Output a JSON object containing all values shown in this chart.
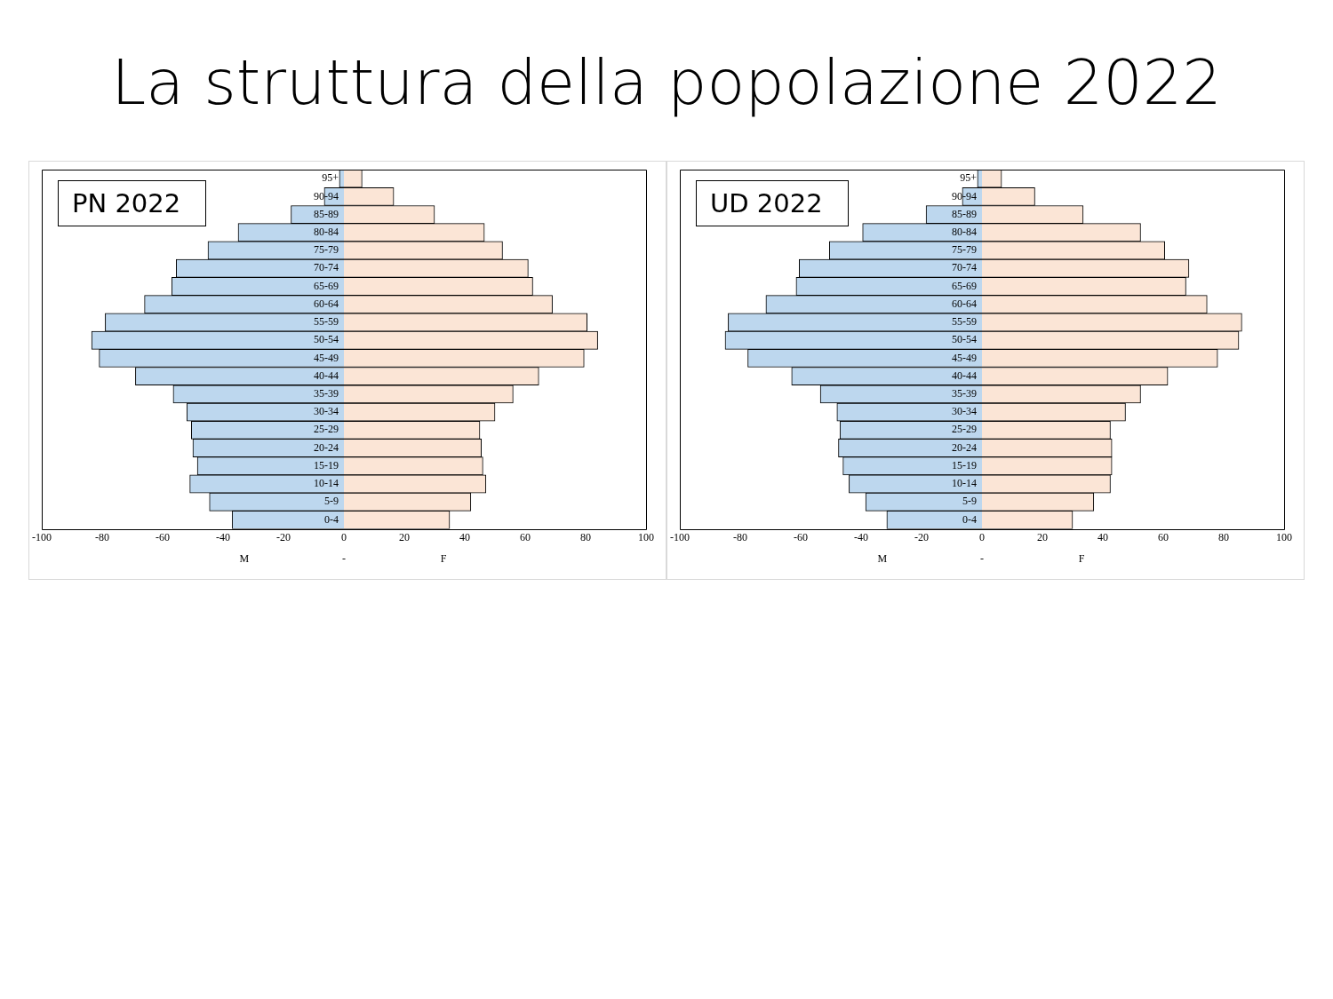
{
  "chart_data": [
    {
      "type": "bar",
      "title": "La struttura della popolazione 2022",
      "subtitle": "PN 2022",
      "orientation": "horizontal",
      "stacked": true,
      "legend": false,
      "grid": false,
      "categories": [
        "95+",
        "90-94",
        "85-89",
        "80-84",
        "75-79",
        "70-74",
        "65-69",
        "60-64",
        "55-59",
        "50-54",
        "45-49",
        "40-44",
        "35-39",
        "30-34",
        "25-29",
        "20-24",
        "15-19",
        "10-14",
        "5-9",
        "0-4"
      ],
      "series": [
        {
          "color": "#bdd7ee",
          "values": [
            -1.5,
            -6.5,
            -17.5,
            -35,
            -45,
            -55.5,
            -57,
            -66,
            -79,
            -83.5,
            -81,
            -69,
            -56.5,
            -52,
            -50.5,
            -50,
            -48.5,
            -51,
            -44.5,
            -37
          ]
        },
        {
          "color": "#fbe5d6",
          "values": [
            6,
            16.5,
            30,
            46.5,
            52.5,
            61,
            62.5,
            69,
            80.5,
            84,
            79.5,
            64.5,
            56,
            50,
            45,
            45.5,
            46,
            47,
            42,
            35
          ]
        }
      ],
      "xlim": [
        -100,
        100
      ],
      "xticks": [
        -100,
        -80,
        -60,
        -40,
        -20,
        0,
        20,
        40,
        60,
        80,
        100
      ],
      "annotations": [
        "M",
        "-",
        "F"
      ]
    },
    {
      "type": "bar",
      "subtitle": "UD 2022",
      "orientation": "horizontal",
      "stacked": true,
      "legend": false,
      "grid": false,
      "categories": [
        "95+",
        "90-94",
        "85-89",
        "80-84",
        "75-79",
        "70-74",
        "65-69",
        "60-64",
        "55-59",
        "50-54",
        "45-49",
        "40-44",
        "35-39",
        "30-34",
        "25-29",
        "20-24",
        "15-19",
        "10-14",
        "5-9",
        "0-4"
      ],
      "series": [
        {
          "color": "#bdd7ee",
          "values": [
            -1.5,
            -6.5,
            -18.5,
            -39.5,
            -50.5,
            -60.5,
            -61.5,
            -71.5,
            -84,
            -85,
            -77.5,
            -63,
            -53.5,
            -48,
            -47,
            -47.5,
            -46,
            -44,
            -38.5,
            -31.5
          ]
        },
        {
          "color": "#fbe5d6",
          "values": [
            6.5,
            17.5,
            33.5,
            52.5,
            60.5,
            68.5,
            67.5,
            74.5,
            86,
            85,
            78,
            61.5,
            52.5,
            47.5,
            42.5,
            43,
            43,
            42.5,
            37,
            30
          ]
        }
      ],
      "xlim": [
        -100,
        100
      ],
      "xticks": [
        -100,
        -80,
        -60,
        -40,
        -20,
        0,
        20,
        40,
        60,
        80,
        100
      ],
      "annotations": [
        "M",
        "-",
        "F"
      ]
    }
  ]
}
